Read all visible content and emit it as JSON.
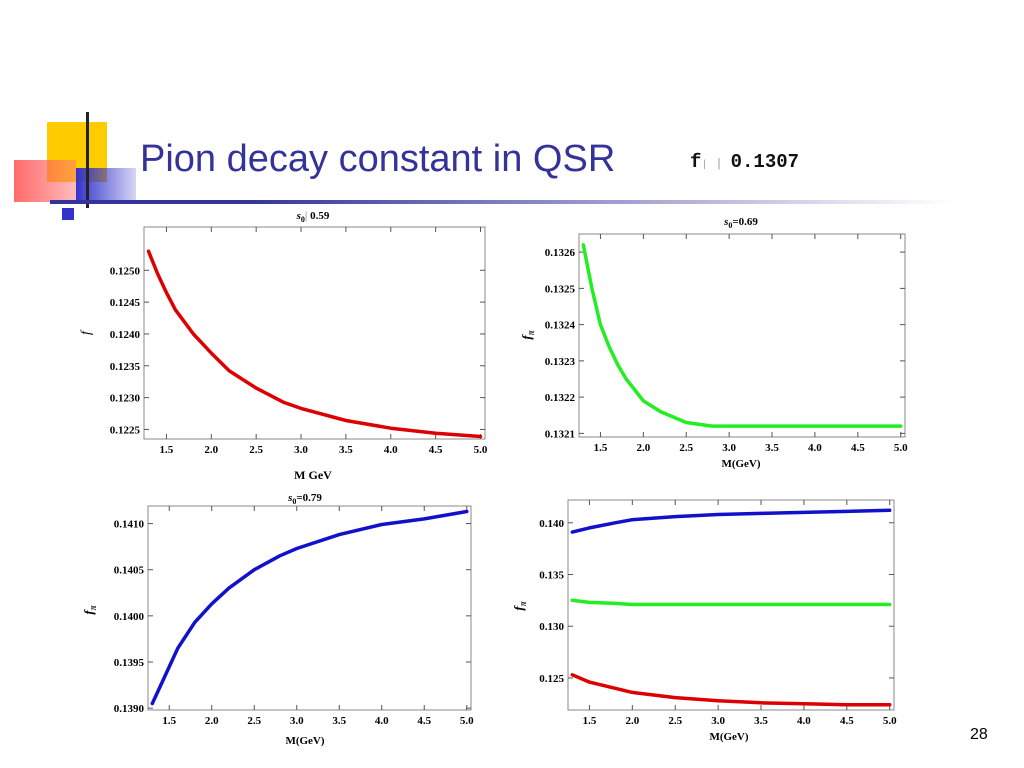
{
  "slide": {
    "title": "Pion decay constant in QSR",
    "f_symbol": "f",
    "f_value": "0.1307",
    "page_number": "28",
    "accent_colors": {
      "title": "#333399",
      "yellow": "#FFCC00",
      "red": "#FF3333",
      "blue": "#3333CC"
    }
  },
  "chart_data": [
    {
      "type": "line",
      "title": "s0 0.59",
      "title_parts": {
        "s": "s",
        "sub": "0",
        "value": "0.59"
      },
      "xlabel": "M GeV",
      "ylabel": "f",
      "xlim": [
        1.25,
        5.05
      ],
      "ylim": [
        0.12235,
        0.12568
      ],
      "x_ticks": [
        "1.5",
        "2.0",
        "2.5",
        "3.0",
        "3.5",
        "4.0",
        "4.5",
        "5.0"
      ],
      "y_ticks": [
        "0.1225",
        "0.1230",
        "0.1235",
        "0.1240",
        "0.1245",
        "0.1250"
      ],
      "series": [
        {
          "color": "#DD0000",
          "x": [
            1.3,
            1.4,
            1.5,
            1.6,
            1.8,
            2.0,
            2.2,
            2.5,
            2.8,
            3.0,
            3.5,
            4.0,
            4.5,
            5.0
          ],
          "y": [
            0.1253,
            0.12495,
            0.12465,
            0.12438,
            0.124,
            0.1237,
            0.12342,
            0.12315,
            0.12293,
            0.12283,
            0.12264,
            0.12252,
            0.12244,
            0.12239
          ]
        }
      ]
    },
    {
      "type": "line",
      "title": "s0=0.69",
      "title_parts": {
        "s": "s",
        "sub": "0",
        "value": "=0.69"
      },
      "xlabel": "M(GeV)",
      "ylabel": "fπ",
      "ylabel_parts": {
        "f": "f",
        "sub": "π"
      },
      "xlim": [
        1.25,
        5.05
      ],
      "ylim": [
        0.13209,
        0.13265
      ],
      "x_ticks": [
        "1.5",
        "2.0",
        "2.5",
        "3.0",
        "3.5",
        "4.0",
        "4.5",
        "5.0"
      ],
      "y_ticks": [
        "0.1321",
        "0.1322",
        "0.1323",
        "0.1324",
        "0.1325",
        "0.1326"
      ],
      "series": [
        {
          "color": "#22EE22",
          "x": [
            1.3,
            1.4,
            1.5,
            1.6,
            1.7,
            1.8,
            2.0,
            2.2,
            2.5,
            2.8,
            3.0,
            3.5,
            4.0,
            4.5,
            5.0
          ],
          "y": [
            0.13262,
            0.1325,
            0.1324,
            0.13234,
            0.13229,
            0.13225,
            0.13219,
            0.13216,
            0.13213,
            0.13212,
            0.13212,
            0.13212,
            0.13212,
            0.13212,
            0.13212
          ]
        }
      ]
    },
    {
      "type": "line",
      "title": "s0=0.79",
      "title_parts": {
        "s": "s",
        "sub": "0",
        "value": "=0.79"
      },
      "xlabel": "M(GeV)",
      "ylabel": "fπ",
      "ylabel_parts": {
        "f": "f",
        "sub": "π"
      },
      "xlim": [
        1.25,
        5.05
      ],
      "ylim": [
        0.13898,
        0.14119
      ],
      "x_ticks": [
        "1.5",
        "2.0",
        "2.5",
        "3.0",
        "3.5",
        "4.0",
        "4.5",
        "5.0"
      ],
      "y_ticks": [
        "0.1390",
        "0.1395",
        "0.1400",
        "0.1405",
        "0.1410"
      ],
      "series": [
        {
          "color": "#1111CC",
          "x": [
            1.3,
            1.4,
            1.5,
            1.6,
            1.8,
            2.0,
            2.2,
            2.5,
            2.8,
            3.0,
            3.5,
            4.0,
            4.5,
            5.0
          ],
          "y": [
            0.13905,
            0.13925,
            0.13945,
            0.13965,
            0.13993,
            0.14013,
            0.1403,
            0.1405,
            0.14065,
            0.14073,
            0.14088,
            0.14099,
            0.14105,
            0.14113
          ]
        }
      ]
    },
    {
      "type": "line",
      "title": "",
      "xlabel": "M(GeV)",
      "ylabel": "fπ",
      "ylabel_parts": {
        "f": "f",
        "sub": "π"
      },
      "xlim": [
        1.25,
        5.05
      ],
      "ylim": [
        0.1219,
        0.1422
      ],
      "x_ticks": [
        "1.5",
        "2.0",
        "2.5",
        "3.0",
        "3.5",
        "4.0",
        "4.5",
        "5.0"
      ],
      "y_ticks": [
        "0.125",
        "0.130",
        "0.135",
        "0.140"
      ],
      "series": [
        {
          "color": "#1111CC",
          "x": [
            1.3,
            1.5,
            1.8,
            2.0,
            2.5,
            3.0,
            3.5,
            4.0,
            4.5,
            5.0
          ],
          "y": [
            0.1391,
            0.1395,
            0.14,
            0.1403,
            0.1406,
            0.1408,
            0.1409,
            0.141,
            0.1411,
            0.1412
          ]
        },
        {
          "color": "#22EE22",
          "x": [
            1.3,
            1.5,
            1.8,
            2.0,
            2.5,
            3.0,
            3.5,
            4.0,
            4.5,
            5.0
          ],
          "y": [
            0.1325,
            0.1323,
            0.1322,
            0.1321,
            0.1321,
            0.1321,
            0.1321,
            0.1321,
            0.1321,
            0.1321
          ]
        },
        {
          "color": "#DD0000",
          "x": [
            1.3,
            1.5,
            1.8,
            2.0,
            2.5,
            3.0,
            3.5,
            4.0,
            4.5,
            5.0
          ],
          "y": [
            0.1253,
            0.1246,
            0.124,
            0.1236,
            0.1231,
            0.1228,
            0.1226,
            0.1225,
            0.1224,
            0.1224
          ]
        }
      ]
    }
  ]
}
